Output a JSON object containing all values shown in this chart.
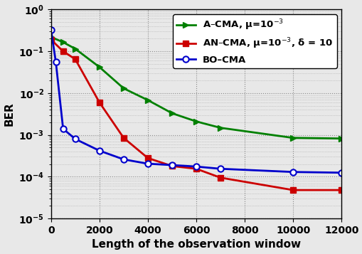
{
  "title": "",
  "xlabel": "Length of the observation window",
  "ylabel": "BER",
  "xlim": [
    0,
    12000
  ],
  "ylim": [
    1e-05,
    1.0
  ],
  "legend_loc": "upper right",
  "acma_x": [
    0,
    500,
    1000,
    2000,
    3000,
    4000,
    5000,
    6000,
    7000,
    10000,
    12000
  ],
  "acma_y": [
    0.22,
    0.165,
    0.115,
    0.042,
    0.013,
    0.0068,
    0.0033,
    0.0021,
    0.00148,
    0.00085,
    0.00082
  ],
  "acma_color": "#008000",
  "acma_label": "A–CMA, μ=10$^{-3}$",
  "ancma_x": [
    0,
    500,
    1000,
    2000,
    3000,
    4000,
    5000,
    6000,
    7000,
    10000,
    12000
  ],
  "ancma_y": [
    0.19,
    0.1,
    0.065,
    0.006,
    0.00085,
    0.00028,
    0.00018,
    0.000155,
    9.5e-05,
    4.8e-05,
    4.8e-05
  ],
  "ancma_color": "#cc0000",
  "ancma_label": "AN–CMA, μ=10$^{-3}$, δ = 10",
  "bocma_x": [
    0,
    200,
    500,
    1000,
    2000,
    3000,
    4000,
    5000,
    6000,
    7000,
    10000,
    12000
  ],
  "bocma_y": [
    0.33,
    0.055,
    0.0014,
    0.0008,
    0.00042,
    0.00026,
    0.000205,
    0.00019,
    0.000175,
    0.000155,
    0.00013,
    0.000125
  ],
  "bocma_color": "#0000cc",
  "bocma_label": "BO–CMA",
  "bg_color": "#e8e8e8",
  "font_size": 11,
  "tick_font_size": 10
}
